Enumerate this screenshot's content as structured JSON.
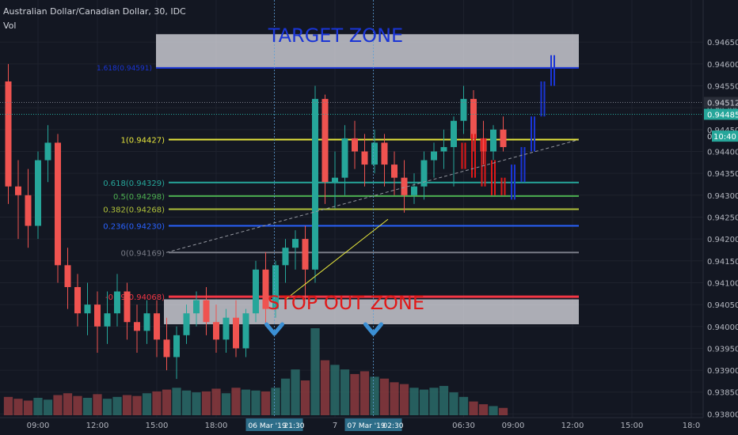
{
  "header": {
    "title": "Australian Dollar/Canadian Dollar, 30, IDC",
    "indicator": "Vol"
  },
  "zones": {
    "target": "TARGET ZONE",
    "stop": "STOP OUT ZONE"
  },
  "colors": {
    "background": "#131722",
    "bull": "#26a69a",
    "bear": "#ef5350",
    "volume_bull": "#2a6b68",
    "volume_bear": "#8c3a3e",
    "fib_1": "#e6e63c",
    "fib_0618": "#26a69a",
    "fib_05": "#4caf50",
    "fib_0382": "#b0c23a",
    "fib_0236": "#2962ff",
    "fib_0": "#787b86",
    "fib_neg": "#f23645",
    "target_line": "#1a35d6",
    "zone_fill": "#e8e8ee",
    "projection_bull": "#1a35d6",
    "projection_bear": "#e01919",
    "marker": "#3b8fd4"
  },
  "chart_data": {
    "type": "candlestick",
    "title": "Australian Dollar/Canadian Dollar, 30, IDC",
    "ylim": [
      0.9377,
      0.9471
    ],
    "y_ticks": [
      "0.94650",
      "0.94600",
      "0.94550",
      "0.94500",
      "0.94450",
      "0.94400",
      "0.94350",
      "0.94300",
      "0.94250",
      "0.94200",
      "0.94150",
      "0.94100",
      "0.94050",
      "0.94000",
      "0.93950",
      "0.93900",
      "0.93850",
      "0.93800"
    ],
    "x_ticks": [
      {
        "label": "09:00",
        "bar": 3
      },
      {
        "label": "12:00",
        "bar": 9
      },
      {
        "label": "15:00",
        "bar": 15
      },
      {
        "label": "18:00",
        "bar": 21
      },
      {
        "label": "7",
        "bar": 33
      },
      {
        "label": "06:30",
        "bar": 46
      },
      {
        "label": "09:00",
        "bar": 51
      },
      {
        "label": "12:00",
        "bar": 57
      },
      {
        "label": "15:00",
        "bar": 63
      },
      {
        "label": "18:0",
        "bar": 69
      }
    ],
    "crosshair_labels": [
      {
        "date": "06 Mar '19",
        "time": "21:30",
        "bar": 28
      },
      {
        "date": "07 Mar '19",
        "time": "02:30",
        "bar": 38
      }
    ],
    "price_labels": [
      {
        "text": "0.94512",
        "value": 0.94512
      },
      {
        "text": "0.94485",
        "value": 0.94485
      },
      {
        "text": "0",
        "value": 0.94435
      },
      {
        "text": "10:40",
        "value": 0.94435
      }
    ],
    "fib_levels": [
      {
        "label": "1(0.94427)",
        "value": 0.94427,
        "color_key": "fib_1"
      },
      {
        "label": "0.618(0.94329)",
        "value": 0.94329,
        "color_key": "fib_0618"
      },
      {
        "label": "0.5(0.94298)",
        "value": 0.94298,
        "color_key": "fib_05"
      },
      {
        "label": "0.382(0.94268)",
        "value": 0.94268,
        "color_key": "fib_0382"
      },
      {
        "label": "0.236(0.94230)",
        "value": 0.9423,
        "color_key": "fib_0236"
      },
      {
        "label": "0(0.94169)",
        "value": 0.94169,
        "color_key": "fib_0"
      },
      {
        "label": "-0.39(0.94068)",
        "value": 0.94068,
        "color_key": "fib_neg"
      }
    ],
    "target_zone": {
      "low": 0.94591,
      "high": 0.94668
    },
    "target_line_label": "1.618(0.94591)",
    "stop_zone": {
      "low": 0.94005,
      "high": 0.94062
    },
    "candles": [
      {
        "o": 0.9456,
        "h": 0.946,
        "l": 0.9428,
        "c": 0.9432
      },
      {
        "o": 0.9432,
        "h": 0.9438,
        "l": 0.942,
        "c": 0.943
      },
      {
        "o": 0.943,
        "h": 0.9436,
        "l": 0.9418,
        "c": 0.9423
      },
      {
        "o": 0.9423,
        "h": 0.944,
        "l": 0.942,
        "c": 0.9438
      },
      {
        "o": 0.9438,
        "h": 0.9446,
        "l": 0.9433,
        "c": 0.9442
      },
      {
        "o": 0.9442,
        "h": 0.9444,
        "l": 0.941,
        "c": 0.9414
      },
      {
        "o": 0.9414,
        "h": 0.9418,
        "l": 0.9404,
        "c": 0.9409
      },
      {
        "o": 0.9409,
        "h": 0.9412,
        "l": 0.94,
        "c": 0.9403
      },
      {
        "o": 0.9403,
        "h": 0.941,
        "l": 0.9398,
        "c": 0.9405
      },
      {
        "o": 0.9405,
        "h": 0.9408,
        "l": 0.9394,
        "c": 0.94
      },
      {
        "o": 0.94,
        "h": 0.9408,
        "l": 0.9396,
        "c": 0.9403
      },
      {
        "o": 0.9403,
        "h": 0.9412,
        "l": 0.94,
        "c": 0.9408
      },
      {
        "o": 0.9408,
        "h": 0.941,
        "l": 0.9397,
        "c": 0.9401
      },
      {
        "o": 0.9401,
        "h": 0.9405,
        "l": 0.9394,
        "c": 0.9399
      },
      {
        "o": 0.9399,
        "h": 0.9406,
        "l": 0.9396,
        "c": 0.9403
      },
      {
        "o": 0.9403,
        "h": 0.9406,
        "l": 0.9393,
        "c": 0.9397
      },
      {
        "o": 0.9397,
        "h": 0.9402,
        "l": 0.939,
        "c": 0.9393
      },
      {
        "o": 0.9393,
        "h": 0.94,
        "l": 0.9388,
        "c": 0.9398
      },
      {
        "o": 0.9398,
        "h": 0.9405,
        "l": 0.9396,
        "c": 0.9403
      },
      {
        "o": 0.9403,
        "h": 0.9408,
        "l": 0.94,
        "c": 0.9406
      },
      {
        "o": 0.9406,
        "h": 0.9409,
        "l": 0.9398,
        "c": 0.9401
      },
      {
        "o": 0.9401,
        "h": 0.9405,
        "l": 0.9394,
        "c": 0.9397
      },
      {
        "o": 0.9397,
        "h": 0.9404,
        "l": 0.9394,
        "c": 0.9402
      },
      {
        "o": 0.9402,
        "h": 0.9406,
        "l": 0.9393,
        "c": 0.9395
      },
      {
        "o": 0.9395,
        "h": 0.9404,
        "l": 0.9393,
        "c": 0.9403
      },
      {
        "o": 0.9403,
        "h": 0.9415,
        "l": 0.9401,
        "c": 0.9413
      },
      {
        "o": 0.9413,
        "h": 0.9417,
        "l": 0.94,
        "c": 0.9404
      },
      {
        "o": 0.9404,
        "h": 0.9415,
        "l": 0.9402,
        "c": 0.9414
      },
      {
        "o": 0.9414,
        "h": 0.942,
        "l": 0.941,
        "c": 0.9418
      },
      {
        "o": 0.9418,
        "h": 0.9422,
        "l": 0.9413,
        "c": 0.942
      },
      {
        "o": 0.942,
        "h": 0.9423,
        "l": 0.9406,
        "c": 0.9413
      },
      {
        "o": 0.9413,
        "h": 0.9455,
        "l": 0.941,
        "c": 0.9452
      },
      {
        "o": 0.9452,
        "h": 0.9453,
        "l": 0.9428,
        "c": 0.9433
      },
      {
        "o": 0.9433,
        "h": 0.944,
        "l": 0.9427,
        "c": 0.9434
      },
      {
        "o": 0.9434,
        "h": 0.9446,
        "l": 0.943,
        "c": 0.9443
      },
      {
        "o": 0.9443,
        "h": 0.9447,
        "l": 0.9436,
        "c": 0.944
      },
      {
        "o": 0.944,
        "h": 0.9444,
        "l": 0.9432,
        "c": 0.9437
      },
      {
        "o": 0.9437,
        "h": 0.9445,
        "l": 0.9435,
        "c": 0.9442
      },
      {
        "o": 0.9442,
        "h": 0.9444,
        "l": 0.9432,
        "c": 0.9437
      },
      {
        "o": 0.9437,
        "h": 0.944,
        "l": 0.943,
        "c": 0.9434
      },
      {
        "o": 0.9434,
        "h": 0.9438,
        "l": 0.9426,
        "c": 0.943
      },
      {
        "o": 0.943,
        "h": 0.9435,
        "l": 0.9428,
        "c": 0.9432
      },
      {
        "o": 0.9432,
        "h": 0.944,
        "l": 0.9429,
        "c": 0.9438
      },
      {
        "o": 0.9438,
        "h": 0.9442,
        "l": 0.9434,
        "c": 0.944
      },
      {
        "o": 0.944,
        "h": 0.9445,
        "l": 0.9436,
        "c": 0.9441
      },
      {
        "o": 0.9441,
        "h": 0.9448,
        "l": 0.9432,
        "c": 0.9447
      },
      {
        "o": 0.9447,
        "h": 0.9455,
        "l": 0.9444,
        "c": 0.9452
      },
      {
        "o": 0.9452,
        "h": 0.9454,
        "l": 0.944,
        "c": 0.9443
      },
      {
        "o": 0.9443,
        "h": 0.9447,
        "l": 0.9437,
        "c": 0.944
      },
      {
        "o": 0.944,
        "h": 0.9446,
        "l": 0.9438,
        "c": 0.9445
      },
      {
        "o": 0.9445,
        "h": 0.9448,
        "l": 0.944,
        "c": 0.9441
      }
    ],
    "volume": [
      0.2,
      0.18,
      0.16,
      0.19,
      0.17,
      0.22,
      0.24,
      0.21,
      0.19,
      0.23,
      0.18,
      0.2,
      0.22,
      0.21,
      0.24,
      0.26,
      0.28,
      0.3,
      0.27,
      0.25,
      0.26,
      0.29,
      0.24,
      0.3,
      0.28,
      0.27,
      0.26,
      0.3,
      0.4,
      0.5,
      0.38,
      0.95,
      0.6,
      0.55,
      0.5,
      0.45,
      0.48,
      0.42,
      0.4,
      0.36,
      0.34,
      0.3,
      0.28,
      0.3,
      0.32,
      0.25,
      0.2,
      0.15,
      0.12,
      0.1,
      0.08
    ],
    "projection": {
      "bear": [
        {
          "bar": 46,
          "hi": 0.9442,
          "lo": 0.9436
        },
        {
          "bar": 47,
          "hi": 0.9444,
          "lo": 0.9434
        },
        {
          "bar": 48,
          "hi": 0.9443,
          "lo": 0.9432
        },
        {
          "bar": 49,
          "hi": 0.9438,
          "lo": 0.943
        },
        {
          "bar": 50,
          "hi": 0.9434,
          "lo": 0.943
        }
      ],
      "bull": [
        {
          "bar": 51,
          "hi": 0.9437,
          "lo": 0.9429
        },
        {
          "bar": 52,
          "hi": 0.9441,
          "lo": 0.9433
        },
        {
          "bar": 53,
          "hi": 0.9448,
          "lo": 0.944
        },
        {
          "bar": 54,
          "hi": 0.9456,
          "lo": 0.9448
        },
        {
          "bar": 55,
          "hi": 0.9462,
          "lo": 0.9455
        }
      ]
    }
  }
}
